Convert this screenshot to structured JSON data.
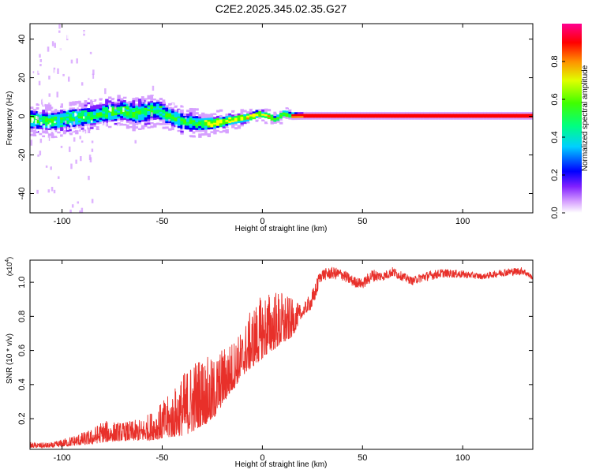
{
  "figure_title": "C2E2.2025.345.02.35.G27",
  "chart_data": [
    {
      "type": "heatmap",
      "title": "C2E2.2025.345.02.35.G27",
      "xlabel": "Height of straight line (km)",
      "ylabel": "Frequency (Hz)",
      "xlim": [
        -116,
        135
      ],
      "ylim": [
        -50,
        48
      ],
      "xticks": [
        -100,
        -50,
        0,
        50,
        100
      ],
      "yticks": [
        -40,
        -20,
        0,
        20,
        40
      ],
      "xtick_labels": [
        "-100",
        "-50",
        "0",
        "50",
        "100"
      ],
      "ytick_labels": [
        "-40",
        "-20",
        "0",
        "20",
        "40"
      ],
      "colorbar": {
        "label": "Normalized spectral amplitude",
        "range": [
          0,
          1
        ],
        "ticks": [
          0.0,
          0.2,
          0.4,
          0.6,
          0.8
        ],
        "tick_labels": [
          "0.0",
          "0.2",
          "0.4",
          "0.6",
          "0.8"
        ],
        "colors": [
          "#ffffff",
          "#d6a0ff",
          "#8020ff",
          "#0000ff",
          "#00d0ff",
          "#00ff60",
          "#40ff00",
          "#ffff00",
          "#ff8000",
          "#ff0000",
          "#ff0088"
        ]
      },
      "ridge_center_hz": {
        "x": [
          -116,
          -105,
          -95,
          -85,
          -75,
          -70,
          -65,
          -60,
          -52,
          -46,
          -40,
          -32,
          -26,
          -20,
          -15,
          -8,
          -2,
          2,
          6,
          10,
          14,
          20,
          30,
          50,
          80,
          110,
          135
        ],
        "y": [
          -2,
          -3,
          -1,
          0,
          2,
          3,
          1,
          2,
          3,
          -1,
          -3,
          -4,
          -4,
          -3,
          -2,
          -1,
          1,
          0,
          -2,
          1,
          0,
          0,
          0,
          0,
          0,
          0,
          0
        ]
      },
      "ridge_halfwidth_hz": {
        "x": [
          -116,
          -60,
          -40,
          -20,
          0,
          20,
          135
        ],
        "y": [
          5,
          5.5,
          4.5,
          3,
          2,
          1.5,
          1.5
        ]
      }
    },
    {
      "type": "line",
      "xlabel": "Height of straight line (km)",
      "ylabel": "SNR (10 * v/v)",
      "y_multiplier": "(x10",
      "y_multiplier_exp": "4",
      "y_multiplier_close": ")",
      "xlim": [
        -116,
        135
      ],
      "ylim": [
        0.02,
        1.13
      ],
      "xticks": [
        -100,
        -50,
        0,
        50,
        100
      ],
      "yticks": [
        0.2,
        0.4,
        0.6,
        0.8,
        1.0
      ],
      "xtick_labels": [
        "-100",
        "-50",
        "0",
        "50",
        "100"
      ],
      "ytick_labels": [
        "0.2",
        "0.4",
        "0.6",
        "0.8",
        "1.0"
      ],
      "color": "#e8302a",
      "series": [
        {
          "name": "SNR",
          "envelope_x": [
            -116,
            -105,
            -95,
            -85,
            -80,
            -70,
            -60,
            -50,
            -45,
            -40,
            -35,
            -30,
            -25,
            -20,
            -15,
            -10,
            -5,
            0,
            5,
            10,
            15,
            20,
            25,
            28,
            30,
            35,
            40,
            45,
            50,
            55,
            60,
            65,
            70,
            75,
            80,
            90,
            100,
            110,
            120,
            130,
            135
          ],
          "envelope_lo": [
            0.03,
            0.03,
            0.04,
            0.05,
            0.06,
            0.07,
            0.07,
            0.08,
            0.09,
            0.1,
            0.12,
            0.16,
            0.18,
            0.28,
            0.36,
            0.45,
            0.5,
            0.55,
            0.6,
            0.63,
            0.68,
            0.8,
            0.85,
            0.96,
            0.97,
            0.98,
            0.97,
            0.94,
            0.93,
            0.96,
            0.98,
            1.0,
            0.98,
            0.96,
            0.97,
            1.0,
            1.0,
            1.0,
            1.01,
            1.02,
            1.0
          ],
          "envelope_hi": [
            0.06,
            0.06,
            0.1,
            0.14,
            0.19,
            0.18,
            0.2,
            0.3,
            0.36,
            0.46,
            0.55,
            0.58,
            0.55,
            0.62,
            0.66,
            0.72,
            0.86,
            0.93,
            0.96,
            0.95,
            0.9,
            0.86,
            0.96,
            1.05,
            1.08,
            1.09,
            1.08,
            1.04,
            1.02,
            1.08,
            1.06,
            1.09,
            1.06,
            1.03,
            1.06,
            1.08,
            1.07,
            1.05,
            1.08,
            1.09,
            1.04
          ]
        }
      ]
    }
  ]
}
